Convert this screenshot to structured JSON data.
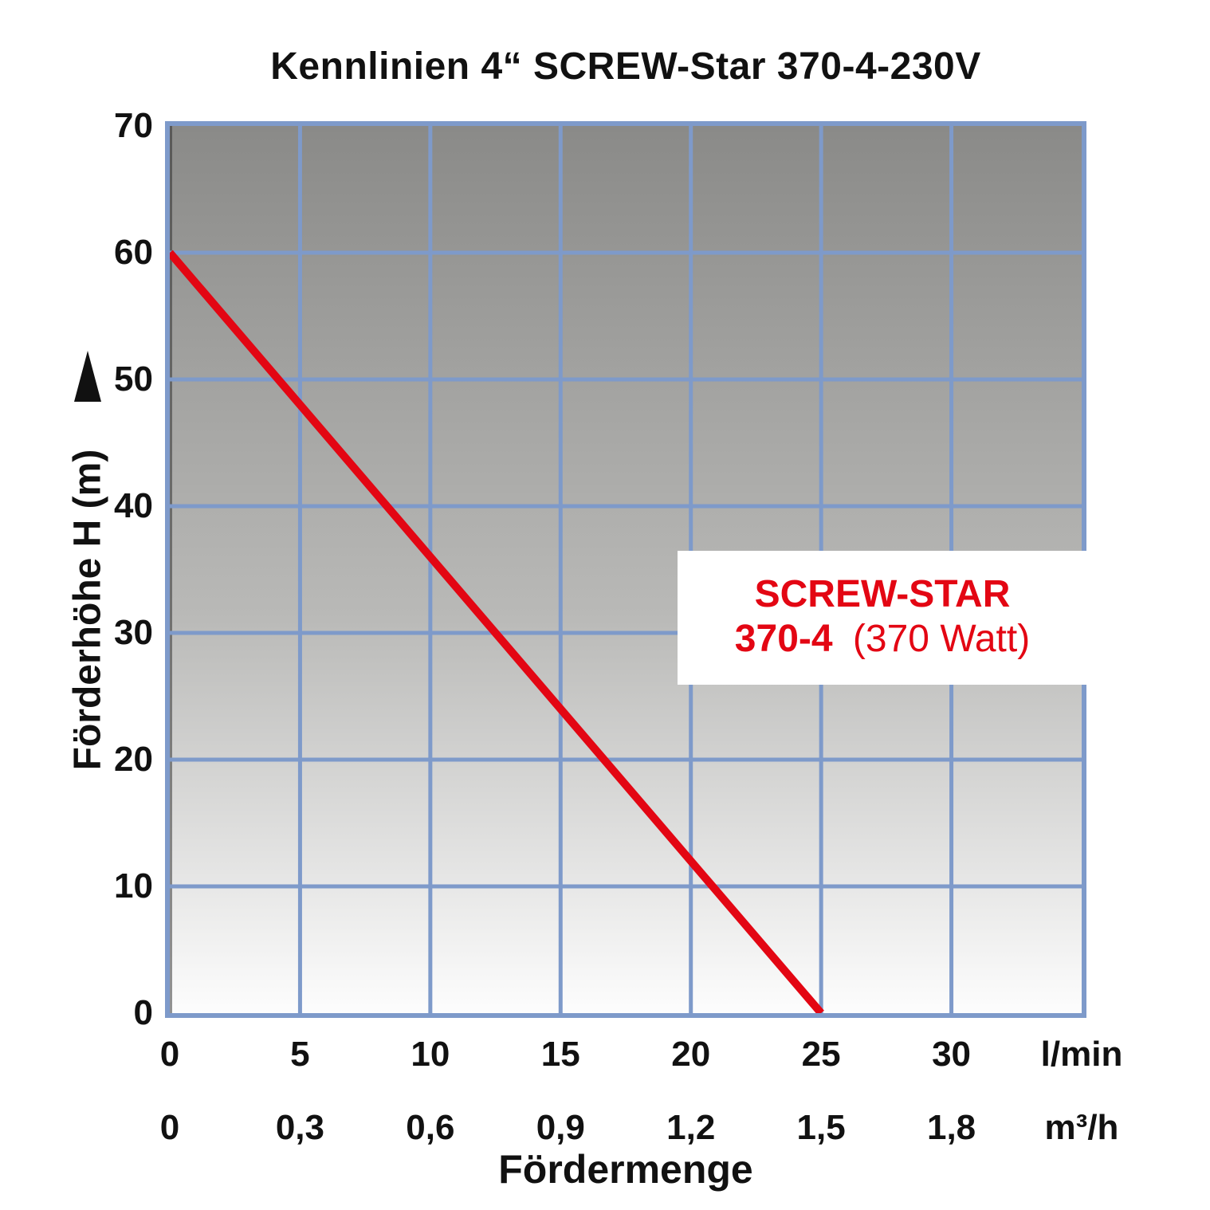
{
  "title": "Kennlinien 4“ SCREW-Star 370-4-230V",
  "chart_data": {
    "type": "line",
    "title": "Kennlinien 4“ SCREW-Star 370-4-230V",
    "x_axis": {
      "title": "Fördermenge",
      "primary_unit": "l/min",
      "primary_ticks": [
        "0",
        "5",
        "10",
        "15",
        "20",
        "25",
        "30"
      ],
      "secondary_unit": "m³/h",
      "secondary_ticks": [
        "0",
        "0,3",
        "0,6",
        "0,9",
        "1,2",
        "1,5",
        "1,8"
      ],
      "range_lmin": [
        0,
        35
      ],
      "grid_step_lmin": 5
    },
    "y_axis": {
      "title": "Förderhöhe H (m)",
      "ticks": [
        "70",
        "60",
        "50",
        "40",
        "30",
        "20",
        "10",
        "0"
      ],
      "range_m": [
        0,
        70
      ],
      "grid_step_m": 10
    },
    "series": [
      {
        "name": "SCREW-STAR 370-4 (370 Watt)",
        "points_lmin_m": [
          [
            0,
            60
          ],
          [
            25,
            0
          ]
        ],
        "color": "#e30613"
      }
    ],
    "annotation": {
      "line1": "SCREW-STAR",
      "line2_bold": "370-4",
      "line2_regular": "(370 Watt)"
    },
    "grid": true,
    "legend_position": "annotation-box-inside-plot"
  },
  "colors": {
    "grid_blue": "#7e9aca",
    "curve_red": "#e30613",
    "text_black": "#111111",
    "plot_gradient_top": "#8a8a88",
    "plot_gradient_bottom": "#fdfdfd",
    "annotation_background": "#ffffff"
  }
}
